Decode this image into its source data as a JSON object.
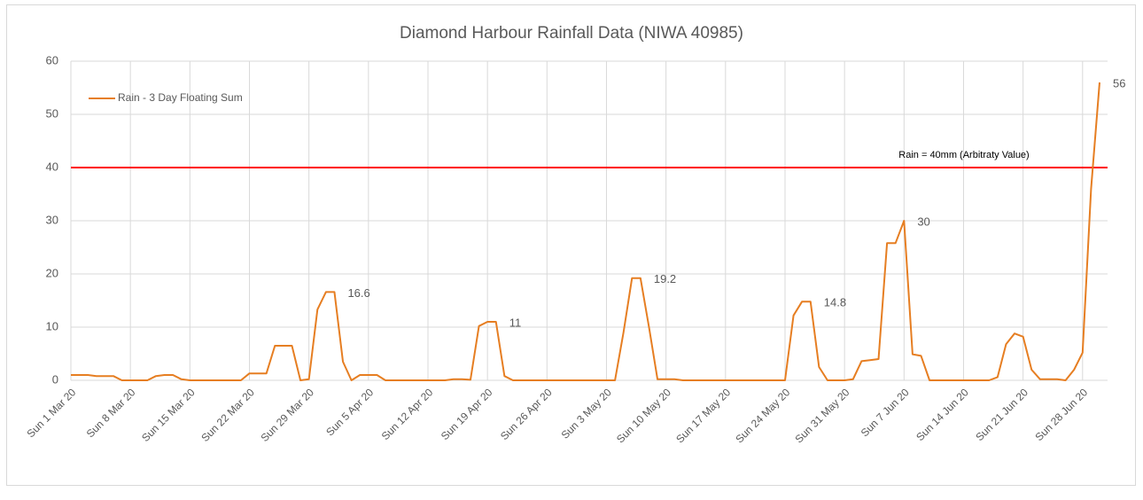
{
  "chart_data": {
    "type": "line",
    "title": "Diamond Harbour Rainfall Data (NIWA 40985)",
    "categories": [
      "Sun 1 Mar 20",
      null,
      null,
      null,
      null,
      null,
      null,
      "Sun 8 Mar 20",
      null,
      null,
      null,
      null,
      null,
      null,
      "Sun 15 Mar 20",
      null,
      null,
      null,
      null,
      null,
      null,
      "Sun 22 Mar 20",
      null,
      null,
      null,
      null,
      null,
      null,
      "Sun 29 Mar 20",
      null,
      null,
      null,
      null,
      null,
      null,
      "Sun 5 Apr 20",
      null,
      null,
      null,
      null,
      null,
      null,
      "Sun 12 Apr 20",
      null,
      null,
      null,
      null,
      null,
      null,
      "Sun 19 Apr 20",
      null,
      null,
      null,
      null,
      null,
      null,
      "Sun 26 Apr 20",
      null,
      null,
      null,
      null,
      null,
      null,
      "Sun 3 May 20",
      null,
      null,
      null,
      null,
      null,
      null,
      "Sun 10 May 20",
      null,
      null,
      null,
      null,
      null,
      null,
      "Sun 17 May 20",
      null,
      null,
      null,
      null,
      null,
      null,
      "Sun 24 May 20",
      null,
      null,
      null,
      null,
      null,
      null,
      "Sun 31 May 20",
      null,
      null,
      null,
      null,
      null,
      null,
      "Sun 7 Jun 20",
      null,
      null,
      null,
      null,
      null,
      null,
      "Sun 14 Jun 20",
      null,
      null,
      null,
      null,
      null,
      null,
      "Sun 21 Jun 20",
      null,
      null,
      null,
      null,
      null,
      null,
      "Sun 28 Jun 20",
      null,
      null
    ],
    "series": [
      {
        "name": "Rain - 3 Day Floating Sum",
        "color": "#e67e22",
        "values": [
          1,
          1,
          1,
          0.8,
          0.8,
          0.8,
          0,
          0,
          0,
          0,
          0.8,
          1,
          1,
          0.2,
          0,
          0,
          0,
          0,
          0,
          0,
          0,
          1.3,
          1.3,
          1.3,
          6.5,
          6.5,
          6.5,
          0,
          0.2,
          13.3,
          16.6,
          16.6,
          3.5,
          0,
          1,
          1,
          1,
          0,
          0,
          0,
          0,
          0,
          0,
          0,
          0,
          0.2,
          0.2,
          0.1,
          10.2,
          11,
          11,
          0.8,
          0,
          0,
          0,
          0,
          0,
          0,
          0,
          0,
          0,
          0,
          0,
          0,
          0,
          9,
          19.2,
          19.2,
          10,
          0.2,
          0.2,
          0.2,
          0,
          0,
          0,
          0,
          0,
          0,
          0,
          0,
          0,
          0,
          0,
          0,
          0,
          12.2,
          14.8,
          14.8,
          2.5,
          0,
          0,
          0,
          0.2,
          3.6,
          3.8,
          4,
          25.8,
          25.8,
          30,
          4.9,
          4.6,
          0,
          0,
          0,
          0,
          0,
          0,
          0,
          0,
          0.6,
          6.8,
          8.8,
          8.2,
          2,
          0.2,
          0.2,
          0.2,
          0,
          2,
          5.2,
          36,
          56
        ],
        "value_labels": [
          null,
          null,
          null,
          null,
          null,
          null,
          null,
          null,
          null,
          null,
          null,
          null,
          null,
          null,
          null,
          null,
          null,
          null,
          null,
          null,
          null,
          null,
          null,
          null,
          null,
          null,
          null,
          null,
          null,
          null,
          null,
          "16.6",
          null,
          null,
          null,
          null,
          null,
          null,
          null,
          null,
          null,
          null,
          null,
          null,
          null,
          null,
          null,
          null,
          null,
          null,
          "11",
          null,
          null,
          null,
          null,
          null,
          null,
          null,
          null,
          null,
          null,
          null,
          null,
          null,
          null,
          null,
          null,
          "19.2",
          null,
          null,
          null,
          null,
          null,
          null,
          null,
          null,
          null,
          null,
          null,
          null,
          null,
          null,
          null,
          null,
          null,
          null,
          null,
          "14.8",
          null,
          null,
          null,
          null,
          null,
          null,
          null,
          null,
          null,
          null,
          "30",
          null,
          null,
          null,
          null,
          null,
          null,
          null,
          null,
          null,
          null,
          null,
          null,
          null,
          null,
          null,
          null,
          null,
          null,
          null,
          null,
          null,
          null,
          "56"
        ]
      }
    ],
    "reference_lines": [
      {
        "value": 40,
        "label": "Rain = 40mm (Arbitraty Value)",
        "color": "#ff0000"
      }
    ],
    "ylim": [
      0,
      60
    ],
    "yticks": [
      0,
      10,
      20,
      30,
      40,
      50,
      60
    ],
    "grid": true,
    "legend": "top-left"
  }
}
